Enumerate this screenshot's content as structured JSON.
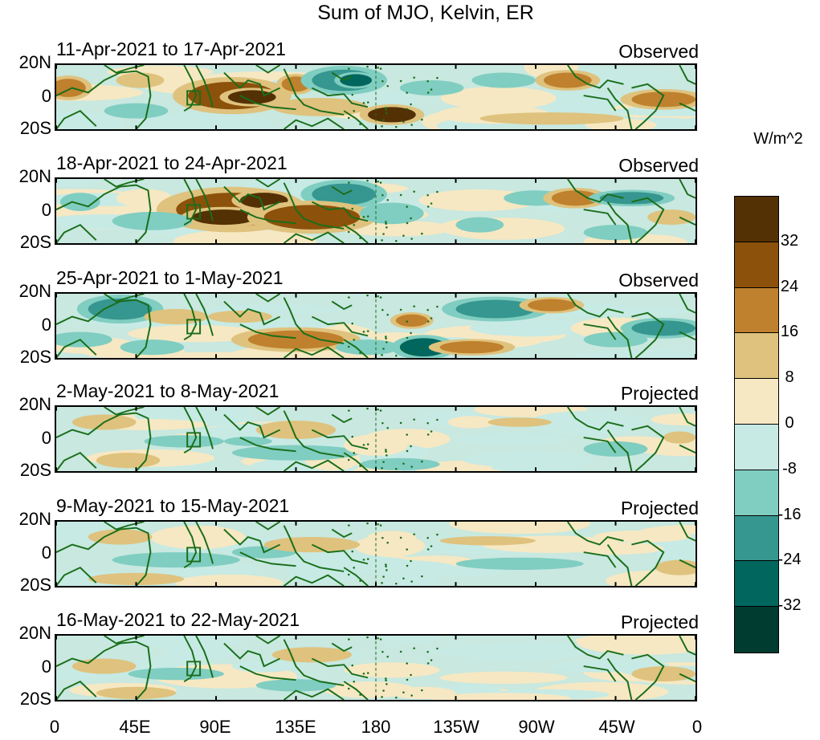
{
  "title": "Sum of MJO, Kelvin, ER",
  "panels": [
    {
      "label": "11-Apr-2021 to 17-Apr-2021",
      "type": "Observed"
    },
    {
      "label": "18-Apr-2021 to 24-Apr-2021",
      "type": "Observed"
    },
    {
      "label": "25-Apr-2021 to 1-May-2021",
      "type": "Observed"
    },
    {
      "label": "2-May-2021 to 8-May-2021",
      "type": "Projected"
    },
    {
      "label": "9-May-2021 to 15-May-2021",
      "type": "Projected"
    },
    {
      "label": "16-May-2021 to 22-May-2021",
      "type": "Projected"
    }
  ],
  "lat_labels": [
    "20N",
    "0",
    "20S"
  ],
  "lon_labels": [
    "0",
    "45E",
    "90E",
    "135E",
    "180",
    "135W",
    "90W",
    "45W",
    "0"
  ],
  "colorbar": {
    "units": "W/m^2",
    "tick_labels": [
      "32",
      "24",
      "16",
      "8",
      "0",
      "-8",
      "-16",
      "-24",
      "-32"
    ],
    "colors": [
      "#543005",
      "#8c510a",
      "#bf812d",
      "#dfc27d",
      "#f6e8c3",
      "#c7eae5",
      "#80cdc1",
      "#35978f",
      "#01665e",
      "#003c30"
    ]
  },
  "map_colors": {
    "coast": "#1a6e1a",
    "ocean": "#c8e8e0",
    "land_line": "#106010"
  }
}
